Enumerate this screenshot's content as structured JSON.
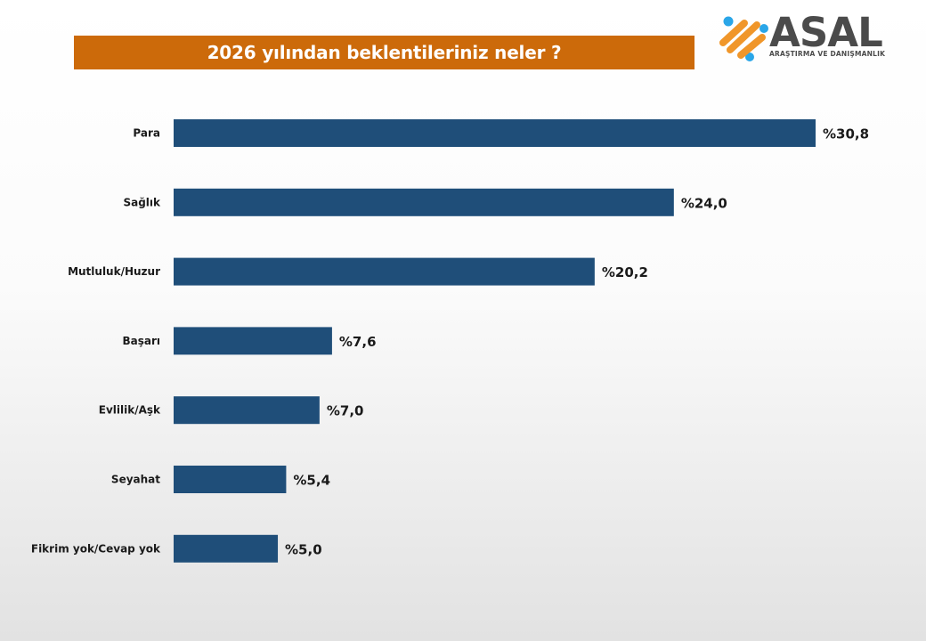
{
  "header": {
    "title": "2026 yılından beklentileriniz neler ?"
  },
  "logo": {
    "word": "ASAL",
    "tagline": "ARAŞTIRMA VE DANIŞMANLIK",
    "colors": {
      "orange": "#f0962a",
      "blue": "#2aa6e8",
      "text": "#4b4b4b"
    }
  },
  "colors": {
    "title_background": "#cc6a0a",
    "bar": "#1f4e79",
    "label_text": "#1a1a1a"
  },
  "chart_data": {
    "type": "bar",
    "orientation": "horizontal",
    "categories": [
      "Para",
      "Sağlık",
      "Mutluluk/Huzur",
      "Başarı",
      "Evlilik/Aşk",
      "Seyahat",
      "Fikrim yok/Cevap yok"
    ],
    "values": [
      30.8,
      24.0,
      20.2,
      7.6,
      7.0,
      5.4,
      5.0
    ],
    "value_labels": [
      "%30,8",
      "%24,0",
      "%20,2",
      "%7,6",
      "%7,0",
      "%5,4",
      "%5,0"
    ],
    "title": "2026 yılından beklentileriniz neler ?",
    "xlabel": "",
    "ylabel": "",
    "xlim": [
      0,
      30.8
    ],
    "grid": false,
    "legend": "none"
  }
}
